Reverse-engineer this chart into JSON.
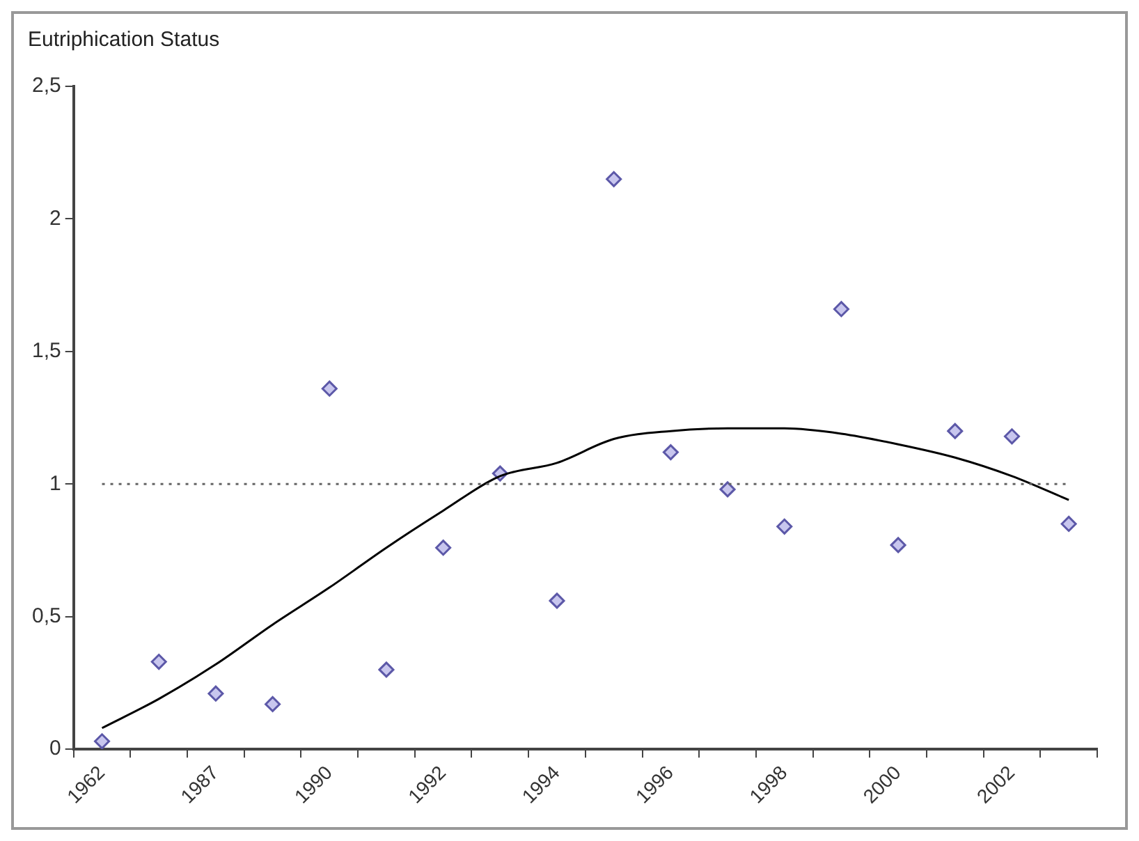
{
  "chart_data": {
    "type": "scatter",
    "title": "Eutriphication Status",
    "categories": [
      "1962",
      null,
      "1987",
      null,
      "1990",
      null,
      "1992",
      null,
      "1994",
      null,
      "1996",
      null,
      "1998",
      null,
      "2000",
      null,
      "2002",
      null
    ],
    "series": [
      {
        "color": "#5c58a8",
        "values": [
          0.03,
          0.33,
          0.21,
          0.17,
          1.36,
          0.3,
          0.76,
          1.04,
          0.56,
          2.15,
          1.12,
          0.98,
          0.84,
          1.66,
          0.77,
          1.2,
          1.18,
          0.85
        ]
      },
      {
        "type": "line",
        "color": "#000000",
        "marker": "none",
        "values": [
          0.08,
          0.19,
          0.32,
          0.47,
          0.61,
          0.76,
          0.9,
          1.03,
          1.08,
          1.17,
          1.2,
          1.21,
          1.21,
          1.19,
          1.15,
          1.1,
          1.03,
          0.94
        ]
      }
    ],
    "marker": "diamond",
    "ylim": [
      0,
      2.5
    ],
    "yticks": [
      0,
      {
        "value": 0.5,
        "label": "0,5"
      },
      1,
      {
        "value": 1.5,
        "label": "1,5"
      },
      2,
      {
        "value": 2.5,
        "label": "2,5"
      }
    ],
    "grid": false,
    "ref_lines": [
      {
        "axis": "y",
        "value": 1,
        "color": "#666666",
        "line_style": "dotted"
      }
    ]
  }
}
